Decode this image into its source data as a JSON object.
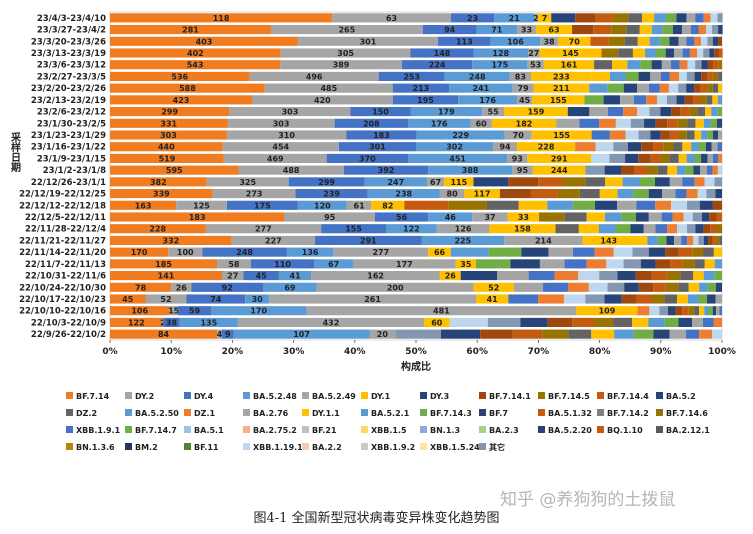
{
  "chart_data": {
    "type": "bar",
    "orientation": "horizontal",
    "stacked": "percent",
    "ylabel": "采样日期",
    "xlabel": "构成比",
    "xticks": [
      "0%",
      "10%",
      "20%",
      "30%",
      "40%",
      "50%",
      "60%",
      "70%",
      "80%",
      "90%",
      "100%"
    ],
    "categories": [
      "23/4/3-23/4/10",
      "23/3/27-23/4/2",
      "23/3/20-23/3/26",
      "23/3/13-23/3/19",
      "23/3/6-23/3/12",
      "23/2/27-23/3/5",
      "23/2/20-23/2/26",
      "23/2/13-23/2/19",
      "23/2/6-23/2/12",
      "23/1/30-23/2/5",
      "23/1/23-23/1/29",
      "23/1/16-23/1/22",
      "23/1/9-23/1/15",
      "23/1/2-23/1/8",
      "22/12/26-23/1/1",
      "22/12/19-22/12/25",
      "22/12/12-22/12/18",
      "22/12/5-22/12/11",
      "22/11/28-22/12/4",
      "22/11/21-22/11/27",
      "22/11/14-22/11/20",
      "22/11/7-22/11/13",
      "22/10/31-22/11/6",
      "22/10/24-22/10/30",
      "22/10/17-22/10/23",
      "22/10/10-22/10/16",
      "22/10/3-22/10/9",
      "22/9/26-22/10/2"
    ],
    "rows": [
      {
        "segments": [
          [
            36.3,
            "118"
          ],
          [
            19.4,
            "63"
          ],
          [
            7.1,
            "23"
          ],
          [
            6.5,
            "21"
          ],
          [
            0.6,
            "2"
          ],
          [
            2.2,
            "7"
          ],
          [
            28.0,
            ""
          ]
        ]
      },
      {
        "segments": [
          [
            26.3,
            "281"
          ],
          [
            24.8,
            "265"
          ],
          [
            8.8,
            "94"
          ],
          [
            6.6,
            "71"
          ],
          [
            3.1,
            "33"
          ],
          [
            5.9,
            "63"
          ],
          [
            24.6,
            ""
          ]
        ]
      },
      {
        "segments": [
          [
            30.7,
            "403"
          ],
          [
            22.9,
            "301"
          ],
          [
            8.6,
            "113"
          ],
          [
            8.1,
            "106"
          ],
          [
            2.9,
            "38"
          ],
          [
            5.3,
            "70"
          ],
          [
            21.5,
            ""
          ]
        ]
      },
      {
        "segments": [
          [
            27.9,
            "402"
          ],
          [
            21.2,
            "305"
          ],
          [
            10.3,
            "148"
          ],
          [
            8.9,
            "128"
          ],
          [
            1.9,
            "27"
          ],
          [
            10.1,
            "145"
          ],
          [
            19.8,
            ""
          ]
        ]
      },
      {
        "segments": [
          [
            27.8,
            "543"
          ],
          [
            19.9,
            "389"
          ],
          [
            11.5,
            "224"
          ],
          [
            9.0,
            "175"
          ],
          [
            2.7,
            "53"
          ],
          [
            8.2,
            "161"
          ],
          [
            20.9,
            ""
          ]
        ]
      },
      {
        "segments": [
          [
            22.8,
            "536"
          ],
          [
            21.1,
            "496"
          ],
          [
            10.8,
            "253"
          ],
          [
            10.6,
            "248"
          ],
          [
            3.5,
            "83"
          ],
          [
            9.9,
            "233"
          ],
          [
            21.3,
            ""
          ]
        ]
      },
      {
        "segments": [
          [
            25.3,
            "588"
          ],
          [
            20.9,
            "485"
          ],
          [
            9.2,
            "213"
          ],
          [
            10.4,
            "241"
          ],
          [
            3.4,
            "79"
          ],
          [
            9.1,
            "211"
          ],
          [
            21.7,
            ""
          ]
        ]
      },
      {
        "segments": [
          [
            23.2,
            "423"
          ],
          [
            23.0,
            "420"
          ],
          [
            10.7,
            "195"
          ],
          [
            9.6,
            "176"
          ],
          [
            2.5,
            "45"
          ],
          [
            8.5,
            "155"
          ],
          [
            22.5,
            ""
          ]
        ]
      },
      {
        "segments": [
          [
            19.5,
            "299"
          ],
          [
            19.8,
            "303"
          ],
          [
            9.8,
            "150"
          ],
          [
            11.7,
            "179"
          ],
          [
            3.6,
            "55"
          ],
          [
            10.4,
            "159"
          ],
          [
            25.2,
            ""
          ]
        ]
      },
      {
        "segments": [
          [
            19.2,
            "331"
          ],
          [
            17.5,
            "303"
          ],
          [
            12.0,
            "208"
          ],
          [
            10.2,
            "176"
          ],
          [
            3.5,
            "60"
          ],
          [
            10.5,
            "182"
          ],
          [
            27.1,
            ""
          ]
        ]
      },
      {
        "segments": [
          [
            19.1,
            "303"
          ],
          [
            19.5,
            "310"
          ],
          [
            11.5,
            "183"
          ],
          [
            14.4,
            "229"
          ],
          [
            4.4,
            "70"
          ],
          [
            9.8,
            "155"
          ],
          [
            21.3,
            ""
          ]
        ]
      },
      {
        "segments": [
          [
            18.4,
            "440"
          ],
          [
            19.0,
            "454"
          ],
          [
            12.6,
            "301"
          ],
          [
            12.6,
            "302"
          ],
          [
            3.9,
            "94"
          ],
          [
            9.5,
            "228"
          ],
          [
            24.0,
            ""
          ]
        ]
      },
      {
        "segments": [
          [
            18.6,
            "519"
          ],
          [
            16.8,
            "469"
          ],
          [
            13.3,
            "370"
          ],
          [
            16.2,
            "451"
          ],
          [
            3.3,
            "93"
          ],
          [
            10.4,
            "291"
          ],
          [
            21.4,
            ""
          ]
        ]
      },
      {
        "segments": [
          [
            21.0,
            "595"
          ],
          [
            17.2,
            "488"
          ],
          [
            13.8,
            "392"
          ],
          [
            13.7,
            "388"
          ],
          [
            3.4,
            "95"
          ],
          [
            8.6,
            "244"
          ],
          [
            22.3,
            ""
          ]
        ]
      },
      {
        "segments": [
          [
            15.8,
            "382"
          ],
          [
            13.4,
            "325"
          ],
          [
            12.4,
            "299"
          ],
          [
            10.2,
            "247"
          ],
          [
            2.8,
            "67"
          ],
          [
            4.8,
            "115"
          ],
          [
            40.6,
            ""
          ]
        ]
      },
      {
        "segments": [
          [
            16.8,
            "339"
          ],
          [
            13.5,
            "273"
          ],
          [
            11.8,
            "239"
          ],
          [
            11.8,
            "238"
          ],
          [
            4.0,
            "80"
          ],
          [
            5.8,
            "117"
          ],
          [
            36.3,
            ""
          ]
        ]
      },
      {
        "segments": [
          [
            10.8,
            "163"
          ],
          [
            8.3,
            "125"
          ],
          [
            11.6,
            "175"
          ],
          [
            8.0,
            "120"
          ],
          [
            4.0,
            "61"
          ],
          [
            5.4,
            "82"
          ],
          [
            51.9,
            ""
          ]
        ]
      },
      {
        "segments": [
          [
            28.5,
            "183"
          ],
          [
            14.8,
            "95"
          ],
          [
            8.7,
            "56"
          ],
          [
            7.2,
            "46"
          ],
          [
            5.8,
            "37"
          ],
          [
            5.1,
            "33"
          ],
          [
            29.9,
            ""
          ]
        ]
      },
      {
        "segments": [
          [
            15.6,
            "228"
          ],
          [
            18.9,
            "277"
          ],
          [
            10.6,
            "155"
          ],
          [
            8.3,
            "122"
          ],
          [
            8.6,
            "126"
          ],
          [
            10.8,
            "158"
          ],
          [
            27.2,
            ""
          ]
        ]
      },
      {
        "segments": [
          [
            19.9,
            "332"
          ],
          [
            13.6,
            "227"
          ],
          [
            17.4,
            "291"
          ],
          [
            13.5,
            "225"
          ],
          [
            12.8,
            "214"
          ],
          [
            8.6,
            "143"
          ],
          [
            14.2,
            ""
          ]
        ]
      },
      {
        "segments": [
          [
            9.5,
            "170"
          ],
          [
            5.6,
            "100"
          ],
          [
            13.8,
            "248"
          ],
          [
            7.6,
            "136"
          ],
          [
            15.5,
            "277"
          ],
          [
            3.7,
            "66"
          ],
          [
            44.3,
            ""
          ]
        ]
      },
      {
        "segments": [
          [
            17.5,
            "185"
          ],
          [
            5.5,
            "58"
          ],
          [
            10.4,
            "110"
          ],
          [
            6.3,
            "67"
          ],
          [
            16.8,
            "177"
          ],
          [
            3.3,
            "35"
          ],
          [
            40.2,
            ""
          ]
        ]
      },
      {
        "segments": [
          [
            18.3,
            "141"
          ],
          [
            3.5,
            "27"
          ],
          [
            5.8,
            "45"
          ],
          [
            5.3,
            "41"
          ],
          [
            21.0,
            "162"
          ],
          [
            3.4,
            "26"
          ],
          [
            42.7,
            ""
          ]
        ]
      },
      {
        "segments": [
          [
            10.0,
            "78"
          ],
          [
            3.3,
            "26"
          ],
          [
            11.7,
            "92"
          ],
          [
            8.8,
            "69"
          ],
          [
            25.6,
            "200"
          ],
          [
            6.6,
            "52"
          ],
          [
            34.0,
            ""
          ]
        ]
      },
      {
        "segments": [
          [
            5.8,
            "45"
          ],
          [
            6.7,
            "52"
          ],
          [
            9.6,
            "74"
          ],
          [
            3.9,
            "30"
          ],
          [
            33.8,
            "261"
          ],
          [
            5.3,
            "41"
          ],
          [
            34.9,
            ""
          ]
        ]
      },
      {
        "segments": [
          [
            9.7,
            "106"
          ],
          [
            1.4,
            "15"
          ],
          [
            5.4,
            "59"
          ],
          [
            15.6,
            "170"
          ],
          [
            44.1,
            "481"
          ],
          [
            10.0,
            "109"
          ],
          [
            13.8,
            ""
          ]
        ]
      },
      {
        "segments": [
          [
            8.6,
            "122"
          ],
          [
            0.1,
            "2"
          ],
          [
            2.7,
            "38"
          ],
          [
            9.5,
            "135"
          ],
          [
            30.4,
            "432"
          ],
          [
            4.2,
            "60"
          ],
          [
            44.5,
            ""
          ]
        ]
      },
      {
        "segments": [
          [
            17.5,
            "84"
          ],
          [
            0.8,
            "4"
          ],
          [
            1.9,
            "9"
          ],
          [
            22.2,
            "107"
          ],
          [
            4.2,
            "20"
          ],
          [
            53.4,
            ""
          ]
        ]
      }
    ],
    "legend": [
      "BF.7.14",
      "DY.2",
      "DY.4",
      "BA.5.2.48",
      "BA.5.2.49",
      "DY.1",
      "DY.3",
      "BF.7.14.1",
      "BF.7.14.5",
      "BF.7.14.4",
      "BA.5.2",
      "DZ.2",
      "BA.5.2.50",
      "DZ.1",
      "BA.2.76",
      "DY.1.1",
      "BA.5.2.1",
      "BF.7.14.3",
      "BF.7",
      "BA.5.1.32",
      "BF.7.14.2",
      "BF.7.14.6",
      "XBB.1.9.1",
      "BF.7.14.7",
      "BA.5.1",
      "BA.2.75.2",
      "BF.21",
      "XBB.1.5",
      "BN.1.3",
      "BA.2.3",
      "BA.5.2.20",
      "BQ.1.10",
      "BA.2.12.1",
      "BN.1.3.6",
      "BM.2",
      "BF.11",
      "XBB.1.19.1",
      "BA.2.2",
      "XBB.1.9.2",
      "XBB.1.5.24",
      "其它"
    ],
    "legend_colors": [
      "#F07C1F",
      "#A5A5A5",
      "#4472C4",
      "#5B9BD5",
      "#A5A5A5",
      "#FFC000",
      "#264478",
      "#9E480E",
      "#997300",
      "#C55A11",
      "#264478",
      "#636363",
      "#5B9BD5",
      "#ED7D31",
      "#A5A5A5",
      "#FFC000",
      "#5B9BD5",
      "#70AD47",
      "#264478",
      "#C55A11",
      "#7F7F7F",
      "#997300",
      "#4472C4",
      "#70AD47",
      "#9DC3E6",
      "#F4B183",
      "#BFBFBF",
      "#FFD966",
      "#8FAADC",
      "#A9D18E",
      "#264478",
      "#C55A11",
      "#595959",
      "#B8860B",
      "#203864",
      "#548235",
      "#BDD7EE",
      "#F8CBAD",
      "#C9C9C9",
      "#FFE699",
      "#8497B0"
    ],
    "tail_palette": [
      "#264478",
      "#9E480E",
      "#C55A11",
      "#997300",
      "#636363",
      "#FFC000",
      "#5B9BD5",
      "#70AD47",
      "#264478",
      "#A5A5A5",
      "#4472C4",
      "#ED7D31",
      "#BDD7EE",
      "#8497B0"
    ]
  },
  "caption": "图4-1 全国新型冠状病毒变异株变化趋势图",
  "watermark": "知乎 @养狗狗的土拨鼠"
}
